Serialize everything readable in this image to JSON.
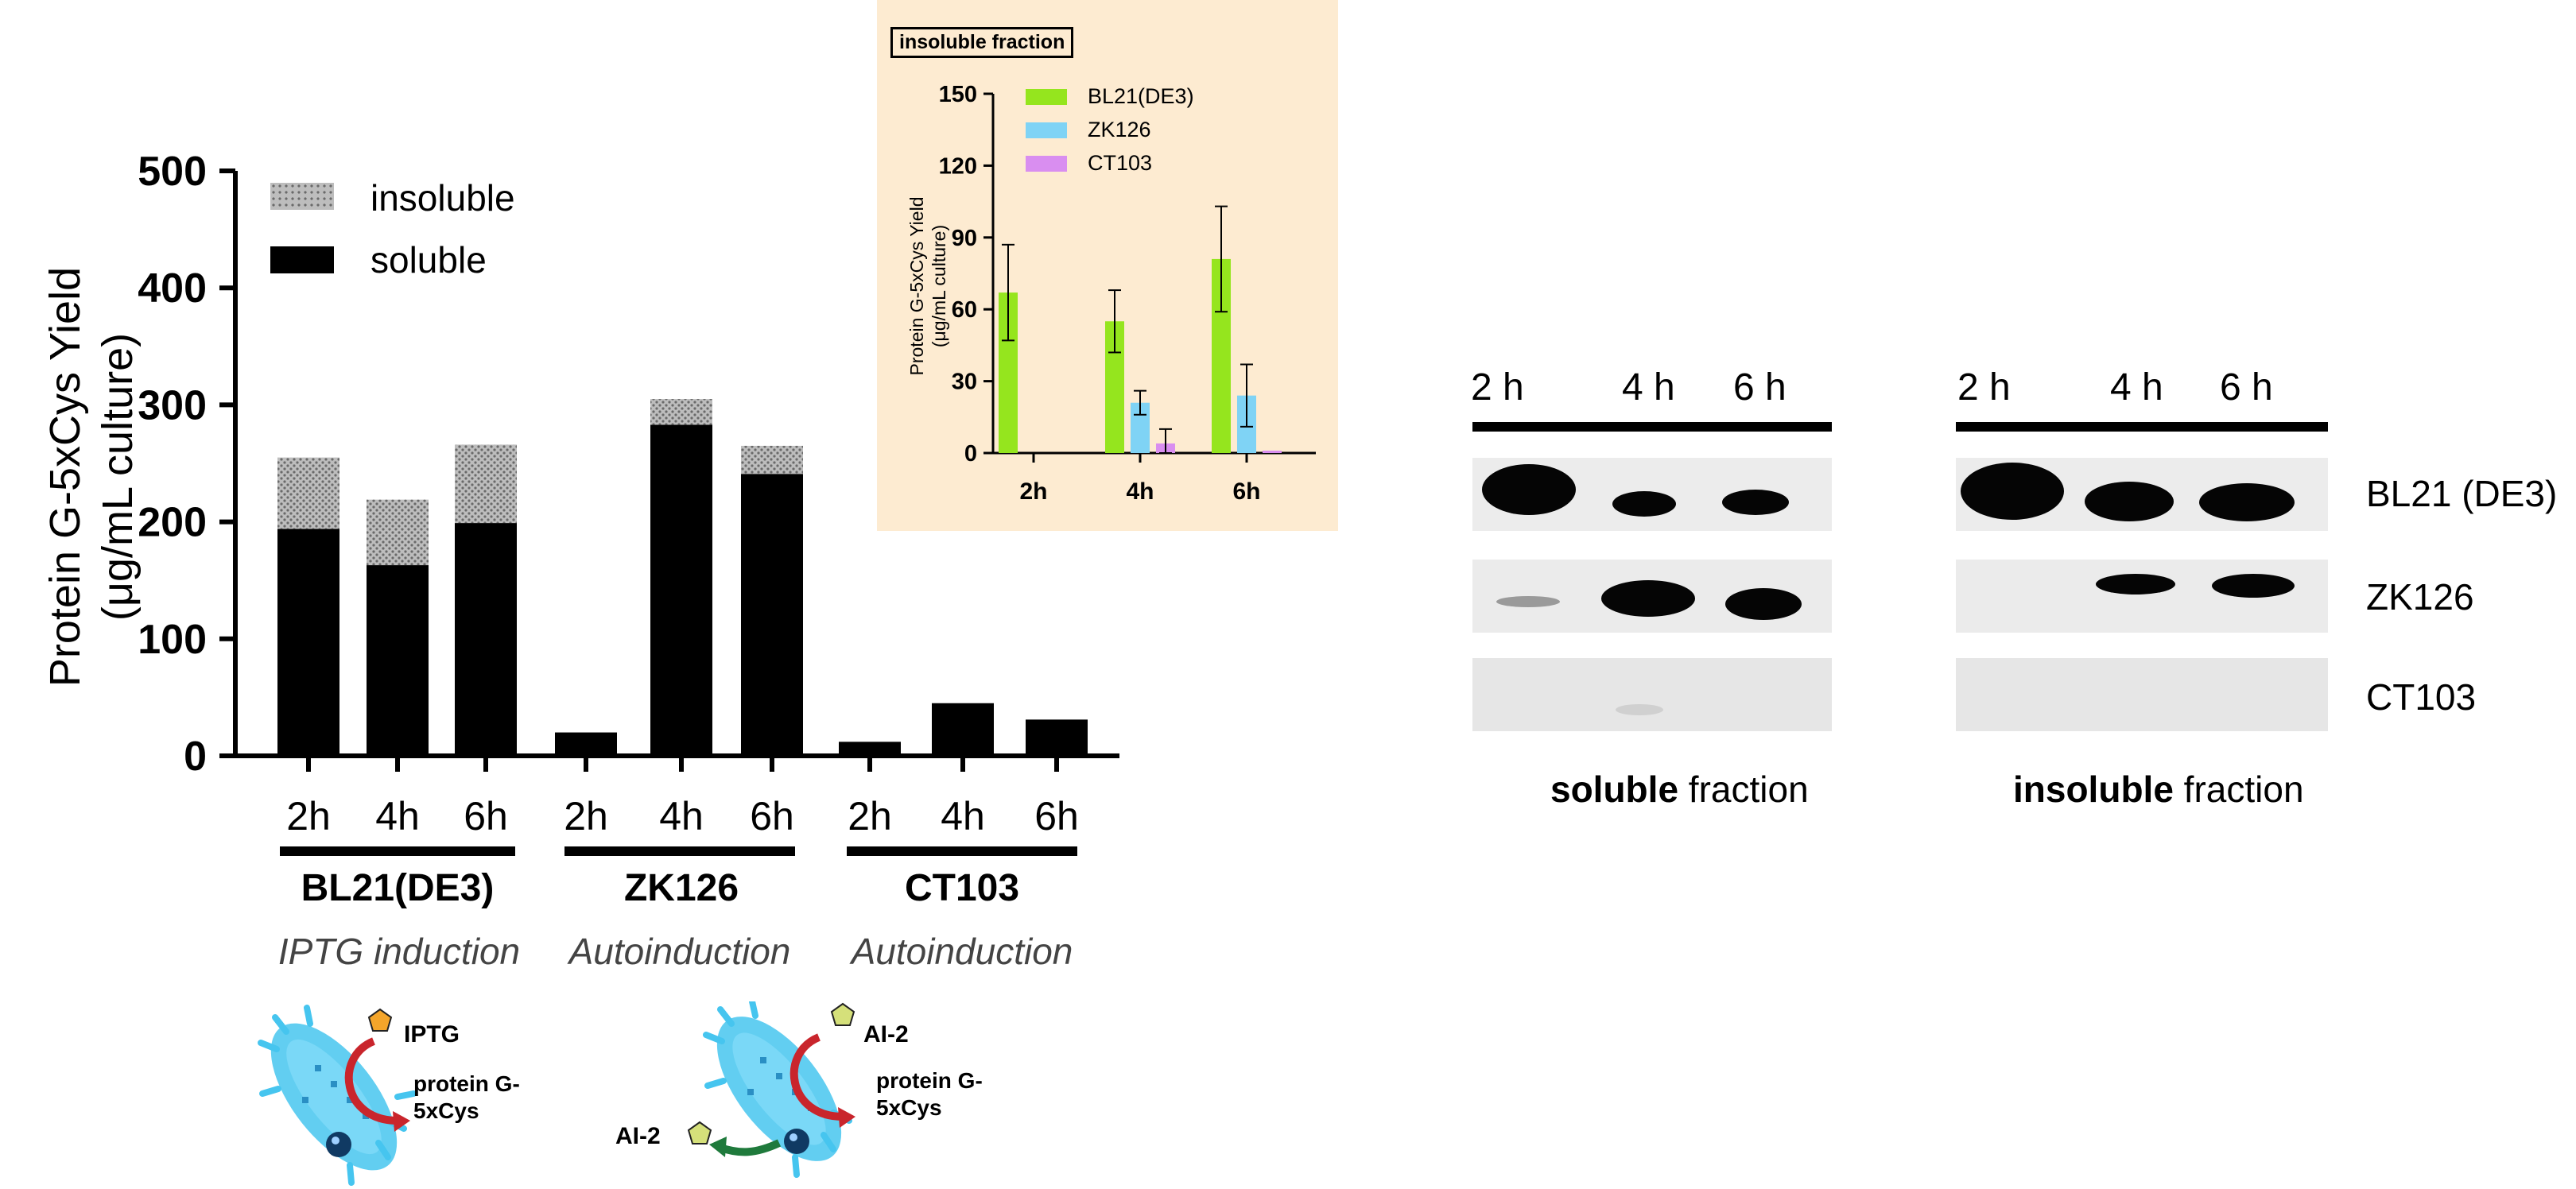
{
  "main_chart": {
    "y_axis_title_line1": "Protein G-5xCys Yield",
    "y_axis_title_line2": "(μg/mL culture)",
    "y_ticks": [
      "0",
      "100",
      "200",
      "300",
      "400",
      "500"
    ],
    "legend": [
      {
        "label": "insoluble",
        "pattern": "dotted-gray"
      },
      {
        "label": "soluble",
        "pattern": "solid-black"
      }
    ],
    "groups": [
      {
        "strain": "BL21(DE3)",
        "induction": "IPTG induction"
      },
      {
        "strain": "ZK126",
        "induction": "Autoinduction"
      },
      {
        "strain": "CT103",
        "induction": "Autoinduction"
      }
    ],
    "time_labels": [
      "2h",
      "4h",
      "6h"
    ]
  },
  "chart_data": [
    {
      "type": "bar",
      "stacked": true,
      "ylabel": "Protein G-5xCys Yield (μg/mL culture)",
      "ylim": [
        0,
        500
      ],
      "yticks": [
        0,
        100,
        200,
        300,
        400,
        500
      ],
      "grid": false,
      "legend_position": "top-left",
      "categories": [
        "BL21(DE3) 2h",
        "BL21(DE3) 4h",
        "BL21(DE3) 6h",
        "ZK126 2h",
        "ZK126 4h",
        "ZK126 6h",
        "CT103 2h",
        "CT103 4h",
        "CT103 6h"
      ],
      "series": [
        {
          "name": "soluble",
          "color": "#000000",
          "values": [
            194,
            163,
            199,
            20,
            283,
            241,
            12,
            45,
            31
          ]
        },
        {
          "name": "insoluble",
          "color": "#b0b0b0",
          "values": [
            61,
            56,
            67,
            0,
            22,
            24,
            0,
            0,
            0
          ]
        }
      ]
    },
    {
      "type": "bar",
      "title": "insoluble fraction",
      "ylabel": "Protein G-5xCys Yield (μg/mL culture)",
      "ylim": [
        0,
        150
      ],
      "yticks": [
        0,
        30,
        60,
        90,
        120,
        150
      ],
      "grid": false,
      "legend_position": "top-right",
      "categories": [
        "2h",
        "4h",
        "6h"
      ],
      "series": [
        {
          "name": "BL21(DE3)",
          "color": "#95e51e",
          "values": [
            67,
            55,
            81
          ],
          "error": [
            20,
            13,
            22
          ]
        },
        {
          "name": "ZK126",
          "color": "#7fd3f5",
          "values": [
            0,
            21,
            24
          ],
          "error": [
            0,
            5,
            13
          ]
        },
        {
          "name": "CT103",
          "color": "#d98ef0",
          "values": [
            0,
            4,
            1
          ],
          "error": [
            0,
            6,
            0
          ]
        }
      ]
    }
  ],
  "inset": {
    "background": "#fdebd1",
    "title": "insoluble fraction",
    "y_axis_title_line1": "Protein G-5xCys Yield",
    "y_axis_title_line2": "(μg/mL culture)"
  },
  "scheme": {
    "left": {
      "inducer": "IPTG",
      "product_line1": "protein G-",
      "product_line2": "5xCys"
    },
    "right": {
      "inducer": "AI-2",
      "product_line1": "protein G-",
      "product_line2": "5xCys",
      "secreted": "AI-2"
    }
  },
  "blots": {
    "lanes": [
      "2 h",
      "4 h",
      "6 h"
    ],
    "rows": [
      "BL21 (DE3)",
      "ZK126",
      "CT103"
    ],
    "soluble_caption": {
      "bold": "soluble",
      "rest": " fraction"
    },
    "insoluble_caption": {
      "bold": "insoluble",
      "rest": " fraction"
    }
  }
}
